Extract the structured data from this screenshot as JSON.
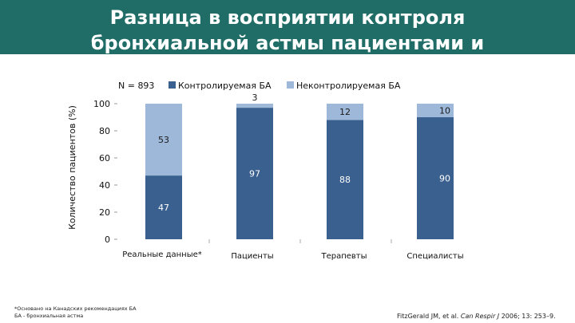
{
  "title": {
    "line1": "Разница в восприятии контроля",
    "line2": "бронхиальной астмы пациентами и"
  },
  "chart_data": {
    "type": "bar",
    "stacked": true,
    "ylabel": "Количество пациентов (%)",
    "ylim": [
      0,
      100
    ],
    "yticks": [
      0,
      20,
      40,
      60,
      80,
      100
    ],
    "annotation": "N = 893",
    "categories": [
      "Реальные данные*",
      "Пациенты",
      "Терапевты",
      "Специалисты"
    ],
    "series": [
      {
        "name": "Контролируемая БА",
        "values": [
          47,
          97,
          88,
          90
        ],
        "color": "#3a6090"
      },
      {
        "name": "Неконтролируемая БА",
        "values": [
          53,
          3,
          12,
          10
        ],
        "color": "#9db8d9"
      }
    ],
    "legend_position": "top"
  },
  "footnote": {
    "line1": "*Основано на Канадских рекомендациях БА",
    "line2": "БА - бронхиальная астма"
  },
  "citation": {
    "authors": "FitzGerald JM, et al.",
    "journal": "Can Respir J",
    "details": "2006; 13: 253–9."
  }
}
